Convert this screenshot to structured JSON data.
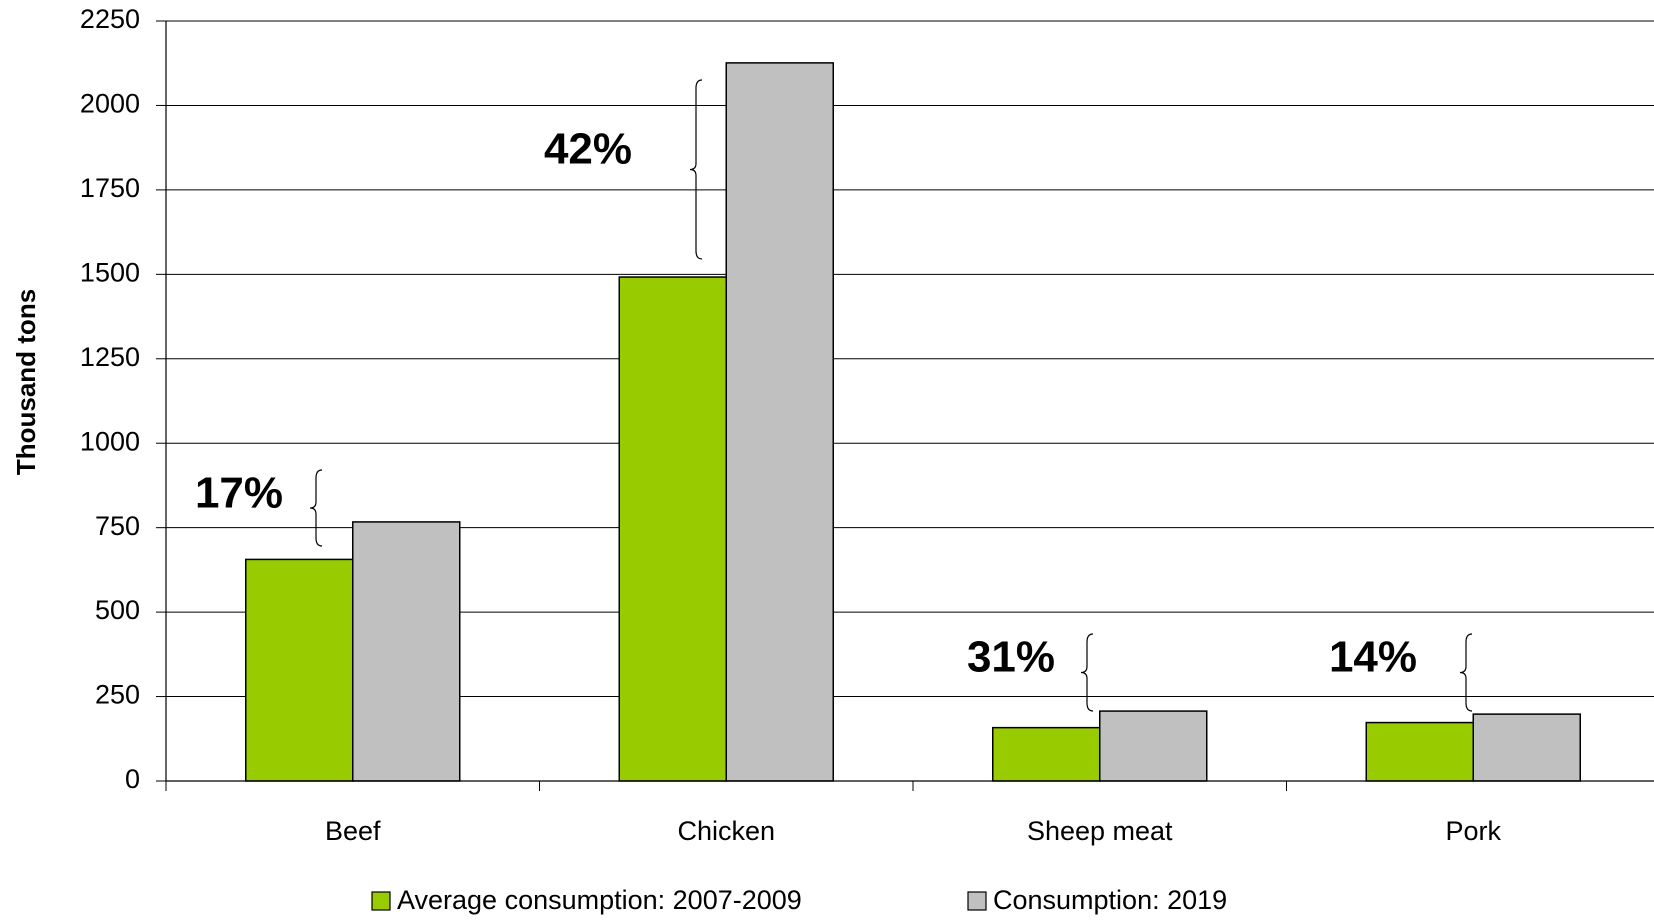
{
  "chart_data": {
    "type": "bar",
    "y_label": "Thousand tons",
    "categories": [
      "Beef",
      "Chicken",
      "Sheep meat",
      "Pork"
    ],
    "series": [
      {
        "name": "Average consumption: 2007-2009",
        "color": "#99cc00",
        "values": [
          656,
          1492,
          158,
          173
        ]
      },
      {
        "name": "Consumption: 2019",
        "color": "#c0c0c0",
        "values": [
          767,
          2126,
          207,
          198
        ]
      }
    ],
    "annotations": [
      "17%",
      "42%",
      "31%",
      "14%"
    ],
    "ylim": [
      0,
      2250
    ],
    "yticks": [
      0,
      250,
      500,
      750,
      1000,
      1250,
      1500,
      1750,
      2000,
      2250
    ],
    "grid": true,
    "legend": "bottom"
  }
}
